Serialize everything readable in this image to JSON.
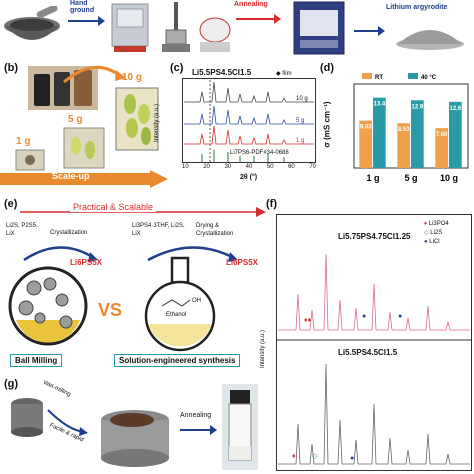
{
  "colors": {
    "arrow_blue": "#1e3f8c",
    "arrow_red": "#d62b2b",
    "orange": "#f0a04b",
    "teal": "#2a9aa8",
    "scaleup_orange": "#e8892e",
    "pink_line": "#e06a8a"
  },
  "panel_a": {
    "step1": "Hand ground",
    "step2": "Annealing",
    "step3": "Lithium argyrodite"
  },
  "panel_b": {
    "label": "(b)",
    "vials": [
      "1 g",
      "5 g",
      "10 g"
    ],
    "arrow_label": "Scale-up"
  },
  "panel_c": {
    "label": "(c)",
    "formula": "Li5.5PS4.5Cl1.5",
    "legend": "film",
    "ylabel": "Intensity (a.u.)",
    "xlabel": "2θ (°)",
    "ref_label": "Li7PS6-PDF#34-0688",
    "series_labels": [
      "10 g",
      "5 g",
      "1 g"
    ],
    "xticks": [
      "10",
      "20",
      "30",
      "40",
      "50",
      "60",
      "70"
    ]
  },
  "panel_d": {
    "label": "(d)",
    "ylabel": "σ (mS cm⁻¹)",
    "legend": [
      "RT",
      "40 °C"
    ],
    "chart_data": {
      "type": "bar",
      "categories": [
        "1 g",
        "5 g",
        "10 g"
      ],
      "series": [
        {
          "name": "RT",
          "values": [
            9.03,
            8.53,
            7.6
          ]
        },
        {
          "name": "40 °C",
          "values": [
            13.4,
            12.9,
            12.6
          ]
        }
      ],
      "ylim": [
        0,
        16
      ]
    }
  },
  "panel_e": {
    "label": "(e)",
    "banner": "Practical & Scalable",
    "left_reagents": "Li2S, P2S5, LiX",
    "left_step": "Crystallization",
    "left_product": "Li6PS5X",
    "vs": "VS",
    "right_reagents": "Li3PS4·3THF, Li2S, LiX",
    "right_step": "Drying & Crystallization",
    "right_product": "Li6PS5X",
    "solvent": "Ethanol",
    "oh": "OH",
    "left_caption": "Ball Milling",
    "right_caption": "Solution-engineered synthesis"
  },
  "panel_f": {
    "label": "(f)",
    "ylabel": "Intensity (a.u.)",
    "top_formula": "Li5.75PS4.75Cl1.25",
    "bottom_formula": "Li5.5PS4.5Cl1.5",
    "legend": [
      "Li3PO4",
      "Li2S",
      "LiCl"
    ]
  },
  "panel_g": {
    "label": "(g)",
    "arrow1": "Wet-milling",
    "arrow1b": "Facile & rapid",
    "arrow2": "Annealing"
  }
}
